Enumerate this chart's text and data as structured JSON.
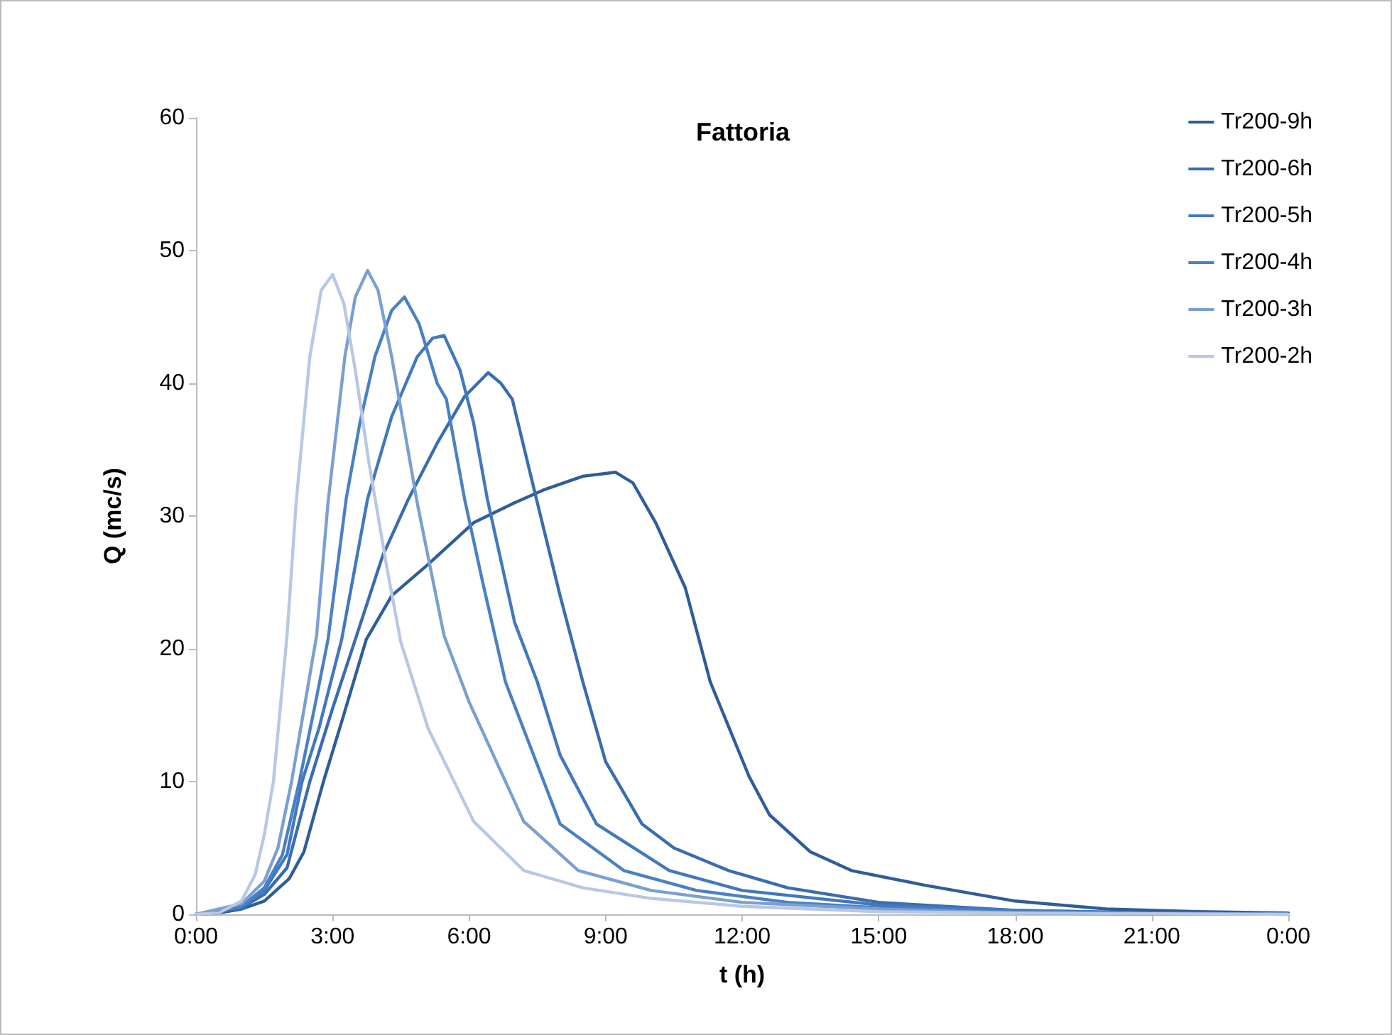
{
  "chart_data": {
    "type": "line",
    "title": "Fattoria",
    "xlabel": "t (h)",
    "ylabel": "Q (mc/s)",
    "xlim": [
      0,
      24
    ],
    "xticks": [
      {
        "value": 0,
        "label": "0:00"
      },
      {
        "value": 3,
        "label": "3:00"
      },
      {
        "value": 6,
        "label": "6:00"
      },
      {
        "value": 9,
        "label": "9:00"
      },
      {
        "value": 12,
        "label": "12:00"
      },
      {
        "value": 15,
        "label": "15:00"
      },
      {
        "value": 18,
        "label": "18:00"
      },
      {
        "value": 21,
        "label": "21:00"
      },
      {
        "value": 24,
        "label": "0:00"
      }
    ],
    "ylim": [
      0,
      60
    ],
    "yticks": [
      0,
      10,
      20,
      30,
      40,
      50,
      60
    ],
    "grid": false,
    "legend": "top right",
    "marker": "none",
    "line_style": "solid",
    "series": [
      {
        "name": "Tr200-9h",
        "color": "#2f5d9a",
        "x": [
          0,
          0.5,
          1,
          1.5,
          2.05,
          2.37,
          2.8,
          3.2,
          3.74,
          4.3,
          5.08,
          6.1,
          7,
          7.66,
          8.5,
          9.22,
          9.6,
          10.1,
          10.75,
          11.3,
          12.15,
          12.6,
          13.5,
          14.4,
          16,
          18,
          20,
          22,
          24
        ],
        "values": [
          0,
          0.1,
          0.4,
          1,
          2.7,
          4.7,
          10,
          14.5,
          20.7,
          24,
          26.3,
          29.5,
          31,
          32,
          33,
          33.3,
          32.5,
          29.5,
          24.6,
          17.5,
          10.4,
          7.5,
          4.7,
          3.3,
          2.2,
          1,
          0.4,
          0.2,
          0.1
        ]
      },
      {
        "name": "Tr200-6h",
        "color": "#3a6cb0",
        "x": [
          0,
          1,
          1.5,
          2,
          2.5,
          3,
          3.5,
          4.1,
          4.67,
          5.3,
          5.9,
          6.42,
          6.7,
          6.95,
          7.5,
          8,
          8.5,
          9,
          9.8,
          10.5,
          11.7,
          13,
          15,
          18,
          21,
          24
        ],
        "values": [
          0,
          0.5,
          1.5,
          3.5,
          10,
          15.5,
          20.7,
          27,
          31.3,
          35.5,
          39,
          40.8,
          40,
          38.8,
          31,
          24,
          17.5,
          11.5,
          6.8,
          5,
          3.3,
          2,
          0.9,
          0.3,
          0.1,
          0
        ]
      },
      {
        "name": "Tr200-5h",
        "color": "#4178be",
        "x": [
          0,
          1,
          1.5,
          2,
          2.33,
          2.7,
          3.2,
          3.77,
          4.3,
          4.86,
          5.2,
          5.45,
          5.8,
          6.1,
          6.4,
          7,
          7.5,
          8,
          8.8,
          10.4,
          12,
          15,
          18,
          21,
          24
        ],
        "values": [
          0,
          0.5,
          1.8,
          4.5,
          10,
          14,
          20.7,
          31.3,
          37.5,
          42,
          43.4,
          43.6,
          41,
          37,
          31.3,
          22,
          17.5,
          12,
          6.8,
          3.3,
          1.8,
          0.7,
          0.3,
          0.1,
          0
        ]
      },
      {
        "name": "Tr200-4h",
        "color": "#4a80c4",
        "x": [
          0,
          1,
          1.5,
          1.9,
          2.27,
          2.6,
          2.9,
          3.3,
          3.6,
          3.93,
          4.3,
          4.58,
          4.9,
          5.3,
          5.5,
          5.9,
          6.3,
          6.8,
          8,
          9.4,
          11,
          13,
          15,
          18,
          21,
          24
        ],
        "values": [
          0,
          0.6,
          2,
          4.5,
          10,
          15.5,
          20.7,
          31.3,
          37,
          42,
          45.5,
          46.5,
          44.5,
          40,
          38.8,
          31.3,
          25,
          17.5,
          6.8,
          3.3,
          1.8,
          0.9,
          0.5,
          0.2,
          0.1,
          0
        ]
      },
      {
        "name": "Tr200-3h",
        "color": "#7a9fd1",
        "x": [
          0,
          1,
          1.5,
          1.8,
          2.1,
          2.4,
          2.65,
          2.9,
          3.27,
          3.5,
          3.77,
          4,
          4.3,
          4.86,
          5.45,
          6,
          7.2,
          8.4,
          10,
          12,
          15,
          18,
          21,
          24
        ],
        "values": [
          0,
          0.8,
          2.5,
          5,
          10,
          16,
          21,
          31,
          42,
          46.5,
          48.5,
          47,
          42,
          31,
          21,
          16,
          7,
          3.3,
          1.8,
          0.9,
          0.4,
          0.1,
          0,
          0
        ]
      },
      {
        "name": "Tr200-2h",
        "color": "#b8c8e4",
        "x": [
          0,
          0.5,
          1,
          1.3,
          1.5,
          1.7,
          2,
          2.2,
          2.5,
          2.75,
          3,
          3.25,
          3.5,
          3.8,
          4.2,
          4.5,
          5.1,
          6.1,
          7.2,
          8.5,
          10,
          12,
          15,
          18,
          24
        ],
        "values": [
          0,
          0.1,
          1,
          3,
          6,
          10,
          21,
          31,
          42,
          47,
          48.2,
          46,
          41,
          34,
          26,
          20.5,
          14,
          7,
          3.3,
          2,
          1.2,
          0.6,
          0.2,
          0.1,
          0
        ]
      }
    ]
  }
}
